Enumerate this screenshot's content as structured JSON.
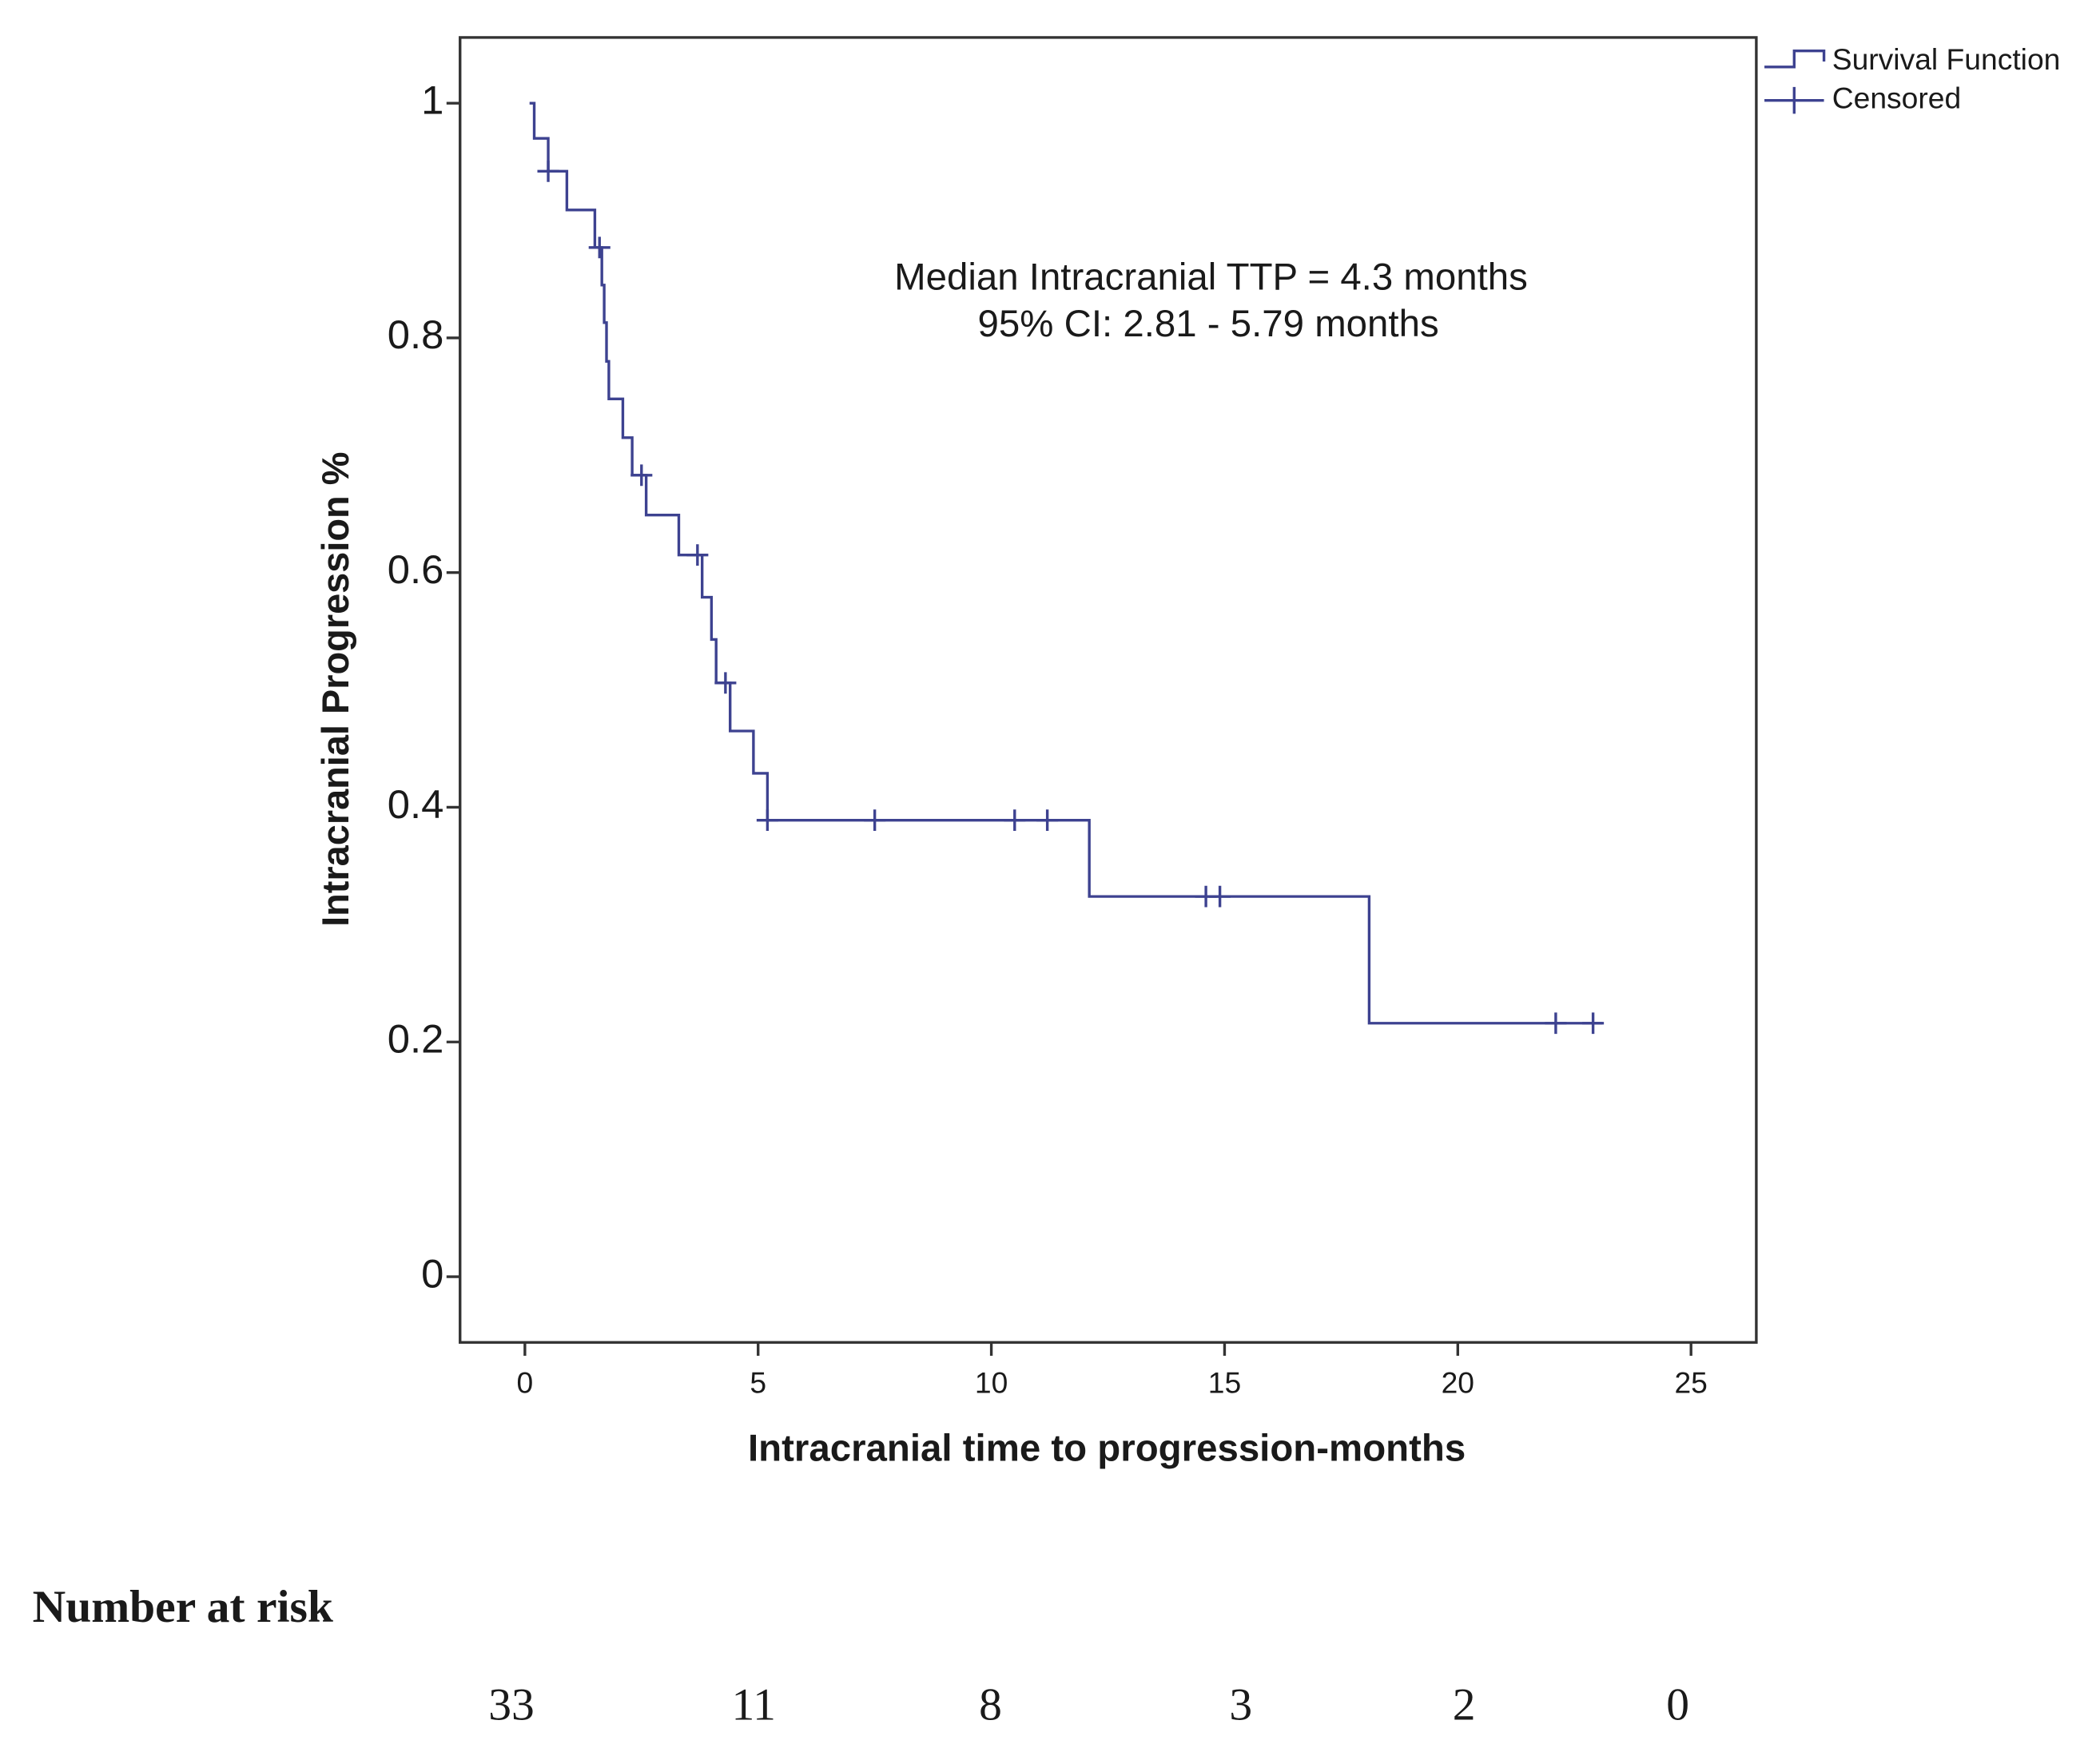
{
  "chart_data": {
    "type": "step",
    "y_label": "Intracranial Progression %",
    "x_label": "Intracranial time to progression-months",
    "annotation": [
      "Median Intracranial TTP = 4.3 months",
      "95% CI: 2.81 - 5.79 months"
    ],
    "xlim": [
      -1.39,
      26.4
    ],
    "ylim": [
      -0.056,
      1.056
    ],
    "xticks": [
      0,
      5,
      10,
      15,
      20,
      25
    ],
    "yticks": [
      0,
      0.2,
      0.4,
      0.6,
      0.8,
      1
    ],
    "color": "#3d4290",
    "legend_position": "outside-top-right",
    "series": [
      {
        "name": "Survival Function",
        "marker": "step",
        "x": [
          0.1,
          0.2,
          0.5,
          0.9,
          1.5,
          1.65,
          1.7,
          1.75,
          1.8,
          2.1,
          2.3,
          2.6,
          3.3,
          3.8,
          4.0,
          4.1,
          4.4,
          4.9,
          5.2,
          12.1,
          18.1,
          23.1
        ],
        "values": [
          1,
          0.97,
          0.942,
          0.909,
          0.877,
          0.845,
          0.813,
          0.78,
          0.748,
          0.715,
          0.683,
          0.649,
          0.615,
          0.579,
          0.543,
          0.506,
          0.465,
          0.429,
          0.389,
          0.324,
          0.216,
          0.216
        ]
      },
      {
        "name": "Censored",
        "marker": "plus",
        "x": [
          0.5,
          1.6,
          2.5,
          3.7,
          4.3,
          5.2,
          7.5,
          10.5,
          11.2,
          14.6,
          14.9,
          22.1,
          22.9
        ],
        "values": [
          0.942,
          0.877,
          0.683,
          0.615,
          0.506,
          0.389,
          0.389,
          0.389,
          0.389,
          0.324,
          0.324,
          0.216,
          0.216
        ]
      }
    ],
    "risk_table": {
      "title": "Number at risk",
      "values": [
        33,
        11,
        8,
        3,
        2,
        0
      ]
    }
  }
}
